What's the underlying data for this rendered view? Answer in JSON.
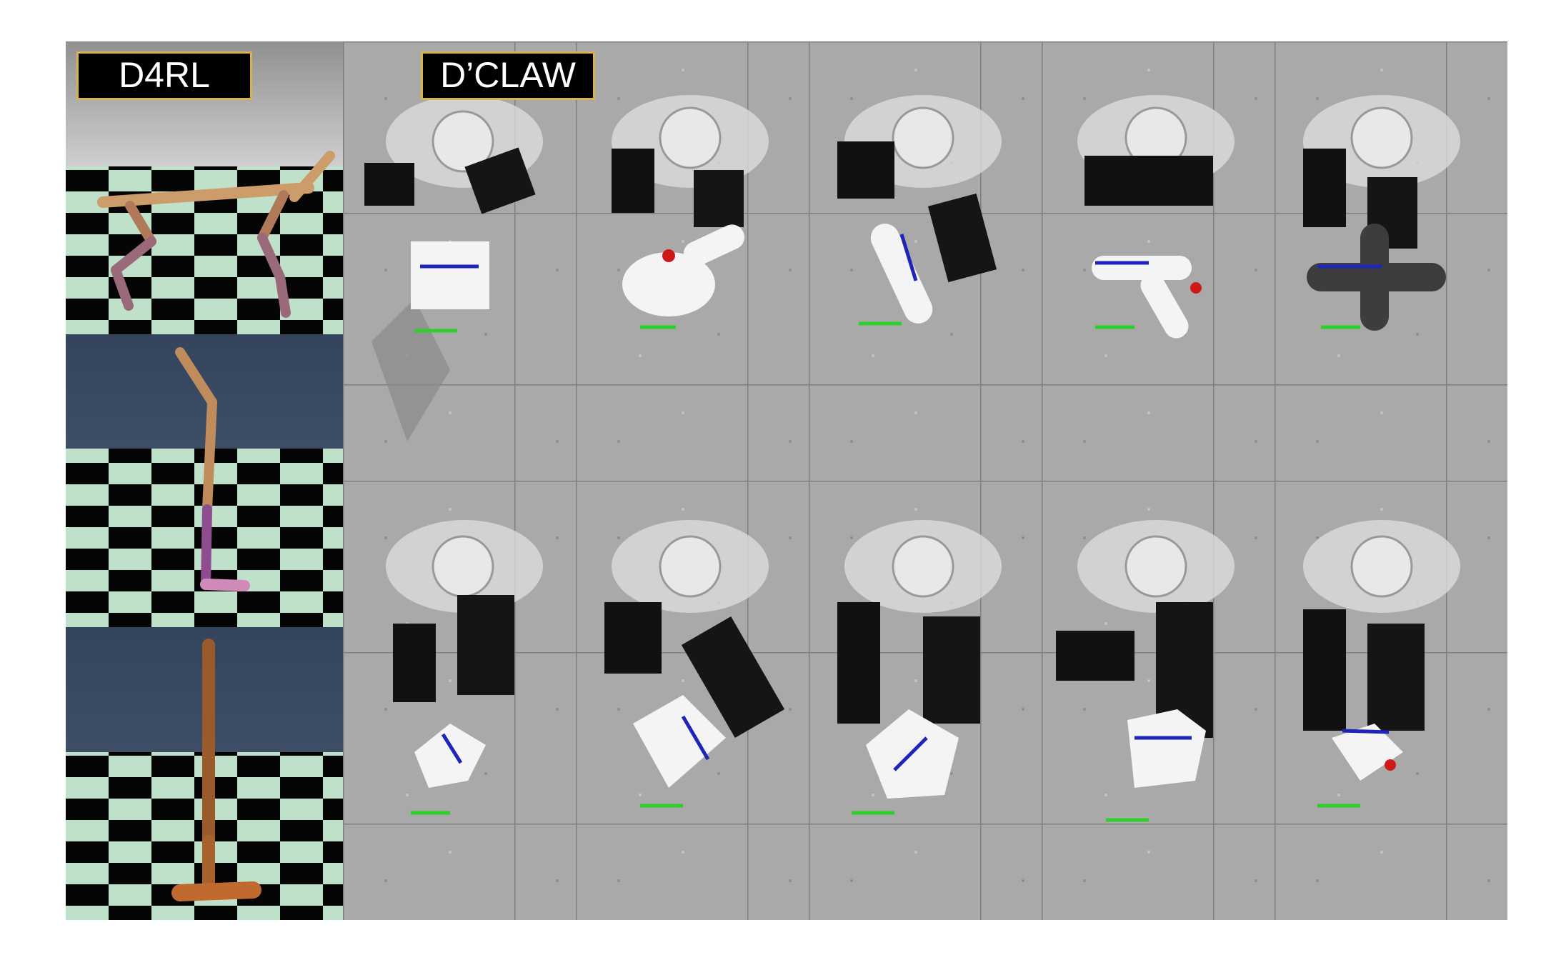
{
  "labels": {
    "left": "D4RL",
    "right": "D’CLAW"
  },
  "left_panels": [
    {
      "agent": "halfcheetah"
    },
    {
      "agent": "walker2d"
    },
    {
      "agent": "hopper"
    }
  ],
  "right_rows": [
    {
      "objects": [
        "block-cube",
        "mushroom-knob",
        "rod-valve",
        "three-prong-valve",
        "cross-valve"
      ]
    },
    {
      "objects": [
        "star-object",
        "pyramid-object",
        "tilted-square",
        "hexagon-block",
        "folded-star"
      ]
    }
  ],
  "colors": {
    "label_border": "#d8b24a",
    "blue_indicator": "#1e25b8",
    "green_indicator": "#2fcf2a",
    "red_tip": "#d01818"
  }
}
